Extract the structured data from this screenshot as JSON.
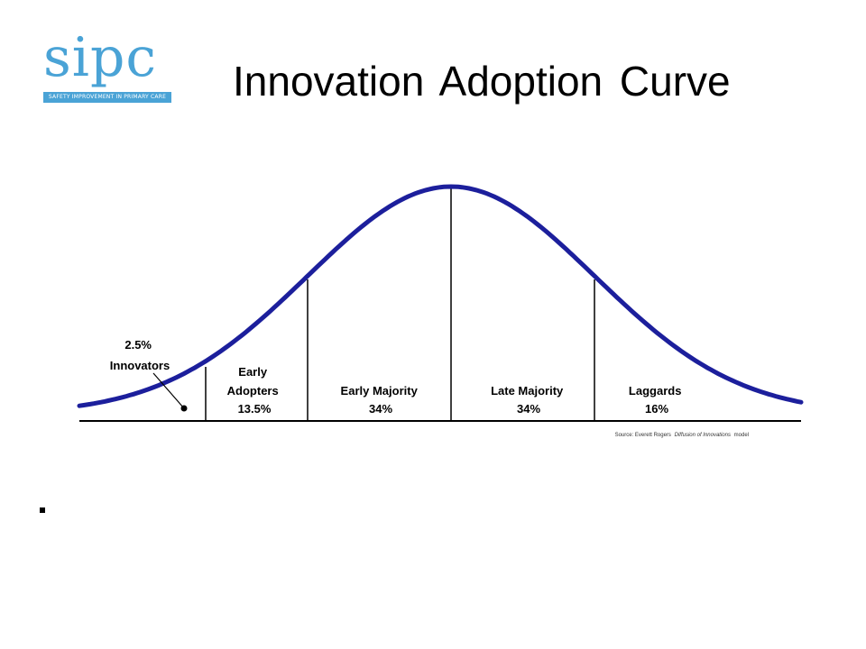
{
  "logo": {
    "wordmark": "sipc",
    "tagline": "SAFETY IMPROVEMENT IN PRIMARY CARE",
    "color": "#4aa3d6"
  },
  "slide": {
    "title": "Innovation Adoption Curve"
  },
  "diagram": {
    "curve_color": "#1c1f9c",
    "segments": [
      {
        "name": "Innovators",
        "label": "2.5%\nInnovators"
      },
      {
        "name": "Early Adopters",
        "label": "Early\nAdopters\n13.5%"
      },
      {
        "name": "Early Majority",
        "label": "Early Majority\n34%"
      },
      {
        "name": "Late Majority",
        "label": "Late Majority\n34%"
      },
      {
        "name": "Laggards",
        "label": "Laggards\n16%"
      }
    ],
    "source_prefix": "Source: Everett Rogers",
    "source_title": "Diffusion of Innovations",
    "source_suffix": "model"
  }
}
